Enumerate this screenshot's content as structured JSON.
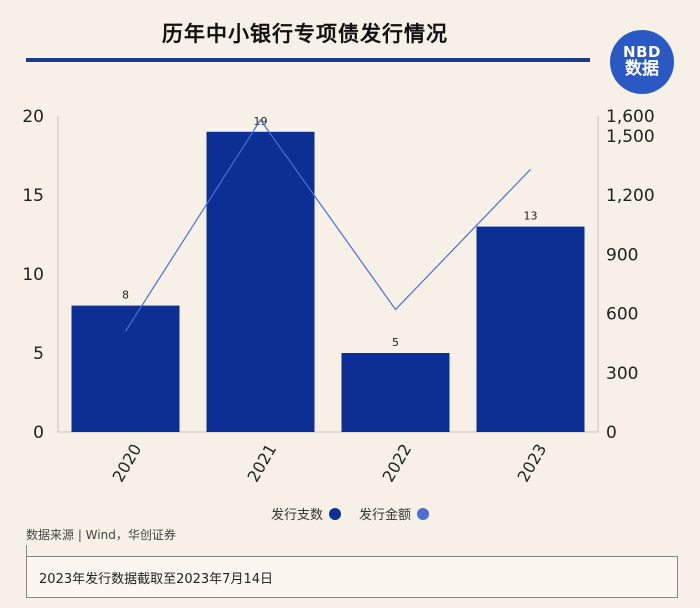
{
  "header": {
    "title": "历年中小银行专项债发行情况",
    "logo_line1": "NBD",
    "logo_line2": "数据"
  },
  "colors": {
    "bar": "#0c2f96",
    "line": "#4c6fd6",
    "rule": "#1b3a8c"
  },
  "chart_data": {
    "type": "bar",
    "categories": [
      "2020",
      "2021",
      "2022",
      "2023"
    ],
    "series": [
      {
        "name": "发行支数",
        "type": "bar",
        "axis": "left",
        "values": [
          8,
          19,
          5,
          13
        ]
      },
      {
        "name": "发行金额",
        "type": "line",
        "axis": "right",
        "values": [
          510,
          1580,
          620,
          1330
        ]
      }
    ],
    "y_left": {
      "ylim": [
        0,
        20
      ],
      "ticks": [
        "0",
        "5",
        "10",
        "15",
        "20"
      ]
    },
    "y_right": {
      "ylim": [
        0,
        1600
      ],
      "ticks": [
        "0",
        "300",
        "600",
        "900",
        "1,200",
        "1,500",
        "1,600"
      ],
      "tick_values": [
        0,
        300,
        600,
        900,
        1200,
        1500,
        1600
      ]
    },
    "data_labels": [
      "8",
      "19",
      "5",
      "13"
    ],
    "legend_position": "bottom-center"
  },
  "footer": {
    "source": "数据来源 | Wind，华创证券",
    "note": "2023年发行数据截取至2023年7月14日"
  }
}
